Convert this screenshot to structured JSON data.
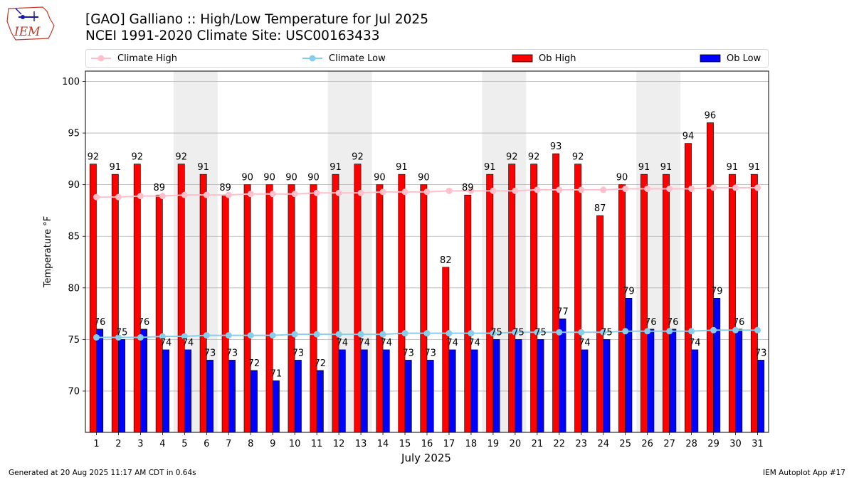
{
  "header": {
    "logo_text": "IEM",
    "title_line1": "[GAO] Galliano :: High/Low Temperature for Jul 2025",
    "title_line2": "NCEI 1991-2020 Climate Site: USC00163433"
  },
  "legend": {
    "items": [
      {
        "label": "Climate High",
        "kind": "line",
        "color": "#ffc0cb"
      },
      {
        "label": "Climate Low",
        "kind": "line",
        "color": "#87ceeb"
      },
      {
        "label": "Ob High",
        "kind": "bar",
        "color": "#ff0000"
      },
      {
        "label": "Ob Low",
        "kind": "bar",
        "color": "#0000ff"
      }
    ]
  },
  "footer": {
    "generated": "Generated at 20 Aug 2025 11:17 AM CDT in 0.64s",
    "app": "IEM Autoplot App #17"
  },
  "chart_data": {
    "type": "bar",
    "xlabel": "July 2025",
    "ylabel": "Temperature °F",
    "ylim": [
      66,
      101
    ],
    "yticks": [
      70,
      75,
      80,
      85,
      90,
      95,
      100
    ],
    "grid": true,
    "legend_position": "top",
    "categories": [
      "1",
      "2",
      "3",
      "4",
      "5",
      "6",
      "7",
      "8",
      "9",
      "10",
      "11",
      "12",
      "13",
      "14",
      "15",
      "16",
      "17",
      "18",
      "19",
      "20",
      "21",
      "22",
      "23",
      "24",
      "25",
      "26",
      "27",
      "28",
      "29",
      "30",
      "31"
    ],
    "weekend_shading": [
      [
        5,
        6
      ],
      [
        12,
        13
      ],
      [
        19,
        20
      ],
      [
        26,
        27
      ]
    ],
    "series": [
      {
        "name": "Ob High",
        "kind": "bar",
        "color": "#ff0000",
        "values": [
          92,
          91,
          92,
          89,
          92,
          91,
          89,
          90,
          90,
          90,
          90,
          91,
          92,
          90,
          91,
          90,
          82,
          89,
          91,
          92,
          92,
          93,
          92,
          87,
          90,
          91,
          91,
          94,
          96,
          91,
          91
        ]
      },
      {
        "name": "Ob Low",
        "kind": "bar",
        "color": "#0000ff",
        "values": [
          76,
          75,
          76,
          74,
          74,
          73,
          73,
          72,
          71,
          73,
          72,
          74,
          74,
          74,
          73,
          73,
          74,
          74,
          75,
          75,
          75,
          77,
          74,
          75,
          79,
          76,
          76,
          74,
          79,
          76,
          73
        ]
      },
      {
        "name": "Climate High",
        "kind": "line",
        "color": "#ffc0cb",
        "values": [
          88.8,
          88.8,
          88.9,
          88.9,
          89.0,
          89.0,
          89.0,
          89.1,
          89.1,
          89.1,
          89.2,
          89.2,
          89.2,
          89.3,
          89.3,
          89.3,
          89.4,
          89.4,
          89.4,
          89.4,
          89.5,
          89.5,
          89.5,
          89.5,
          89.6,
          89.6,
          89.6,
          89.6,
          89.7,
          89.7,
          89.7
        ]
      },
      {
        "name": "Climate Low",
        "kind": "line",
        "color": "#87ceeb",
        "values": [
          75.2,
          75.2,
          75.2,
          75.3,
          75.3,
          75.4,
          75.4,
          75.4,
          75.4,
          75.5,
          75.5,
          75.5,
          75.5,
          75.5,
          75.6,
          75.6,
          75.6,
          75.6,
          75.6,
          75.7,
          75.7,
          75.7,
          75.7,
          75.7,
          75.8,
          75.8,
          75.8,
          75.8,
          75.9,
          75.9,
          75.9
        ]
      }
    ]
  }
}
